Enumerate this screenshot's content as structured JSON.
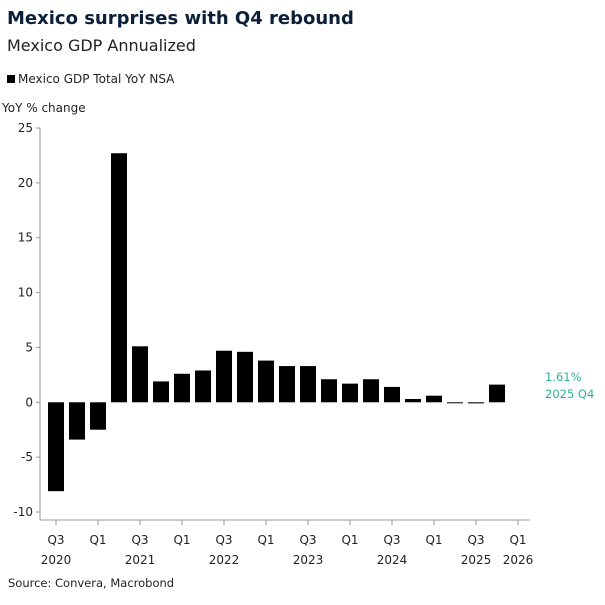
{
  "header": {
    "title": "Mexico surprises with Q4 rebound",
    "subtitle": "Mexico GDP Annualized"
  },
  "legend": {
    "label": "Mexico GDP Total YoY NSA"
  },
  "footer": {
    "source": "Source: Convera, Macrobond"
  },
  "colors": {
    "bar": "#000000",
    "annotation": "#2bb39a",
    "axis": "#999999"
  },
  "chart_data": {
    "type": "bar",
    "title": "Mexico surprises with Q4 rebound",
    "subtitle": "Mexico GDP Annualized",
    "ylabel": "YoY % change",
    "ylim": [
      -10,
      25
    ],
    "yticks": [
      -10,
      -5,
      0,
      5,
      10,
      15,
      20,
      25
    ],
    "grid": false,
    "legend_position": "top-left",
    "series": [
      {
        "name": "Mexico GDP Total YoY NSA",
        "categories": [
          "2020 Q3",
          "2020 Q4",
          "2021 Q1",
          "2021 Q2",
          "2021 Q3",
          "2021 Q4",
          "2022 Q1",
          "2022 Q2",
          "2022 Q3",
          "2022 Q4",
          "2023 Q1",
          "2023 Q2",
          "2023 Q3",
          "2023 Q4",
          "2024 Q1",
          "2024 Q2",
          "2024 Q3",
          "2024 Q4",
          "2025 Q1",
          "2025 Q2",
          "2025 Q3",
          "2025 Q4"
        ],
        "values": [
          -8.1,
          -3.4,
          -2.5,
          22.7,
          5.1,
          1.9,
          2.6,
          2.9,
          4.7,
          4.6,
          3.8,
          3.3,
          3.3,
          2.1,
          1.7,
          2.1,
          1.4,
          0.3,
          0.6,
          0.0,
          -0.1,
          1.61
        ]
      }
    ],
    "x_tick_labels": [
      {
        "label": "Q3",
        "year": "2020"
      },
      {
        "label": "Q1",
        "year": ""
      },
      {
        "label": "Q3",
        "year": "2021"
      },
      {
        "label": "Q1",
        "year": ""
      },
      {
        "label": "Q3",
        "year": "2022"
      },
      {
        "label": "Q1",
        "year": ""
      },
      {
        "label": "Q3",
        "year": "2023"
      },
      {
        "label": "Q1",
        "year": ""
      },
      {
        "label": "Q3",
        "year": "2024"
      },
      {
        "label": "Q1",
        "year": ""
      },
      {
        "label": "Q3",
        "year": "2025"
      },
      {
        "label": "Q1",
        "year": "2026"
      }
    ],
    "annotation": {
      "value_label": "1.61%",
      "period_label": "2025 Q4"
    }
  }
}
